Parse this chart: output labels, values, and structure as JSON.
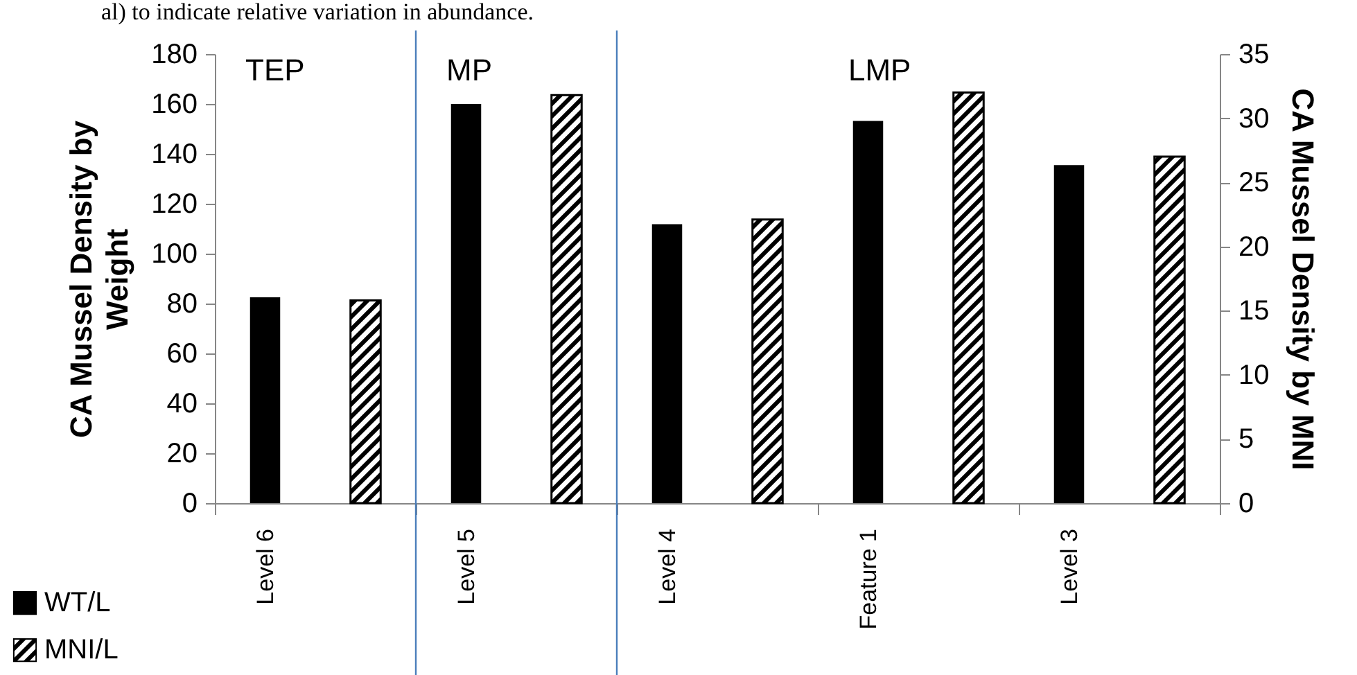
{
  "chart_data": {
    "type": "bar",
    "categories": [
      "Level 6",
      "Level 5",
      "Level 4",
      "Feature 1",
      "Level 3"
    ],
    "series": [
      {
        "name": "WT/L",
        "color": "#000000",
        "values": [
          82.5,
          160,
          111.8,
          153.2,
          135.5
        ]
      },
      {
        "name": "MNI/L",
        "color": "#000000",
        "axis": "y2",
        "values": [
          15.8,
          31.8,
          22.1,
          32,
          27
        ]
      }
    ],
    "ylabel": "CA Mussel Density by Weight",
    "y2label": "CA Mussel Density by MNI",
    "ylim": [
      0,
      180
    ],
    "yticks": [
      0,
      20,
      40,
      60,
      80,
      100,
      120,
      140,
      160,
      180
    ],
    "y2lim": [
      0,
      35
    ],
    "y2ticks": [
      0,
      5,
      10,
      15,
      20,
      25,
      30,
      35
    ],
    "ref_lines": [
      {
        "axis": "x",
        "value": "Level 5",
        "color": "#4a7ebb"
      },
      {
        "axis": "x",
        "value": "Level 4",
        "color": "#4a7ebb"
      }
    ],
    "annotations": [
      "al) to indicate relative variation in abundance.",
      "TEP",
      "MP",
      "LMP"
    ],
    "legend": "bottom left",
    "grid": false
  }
}
